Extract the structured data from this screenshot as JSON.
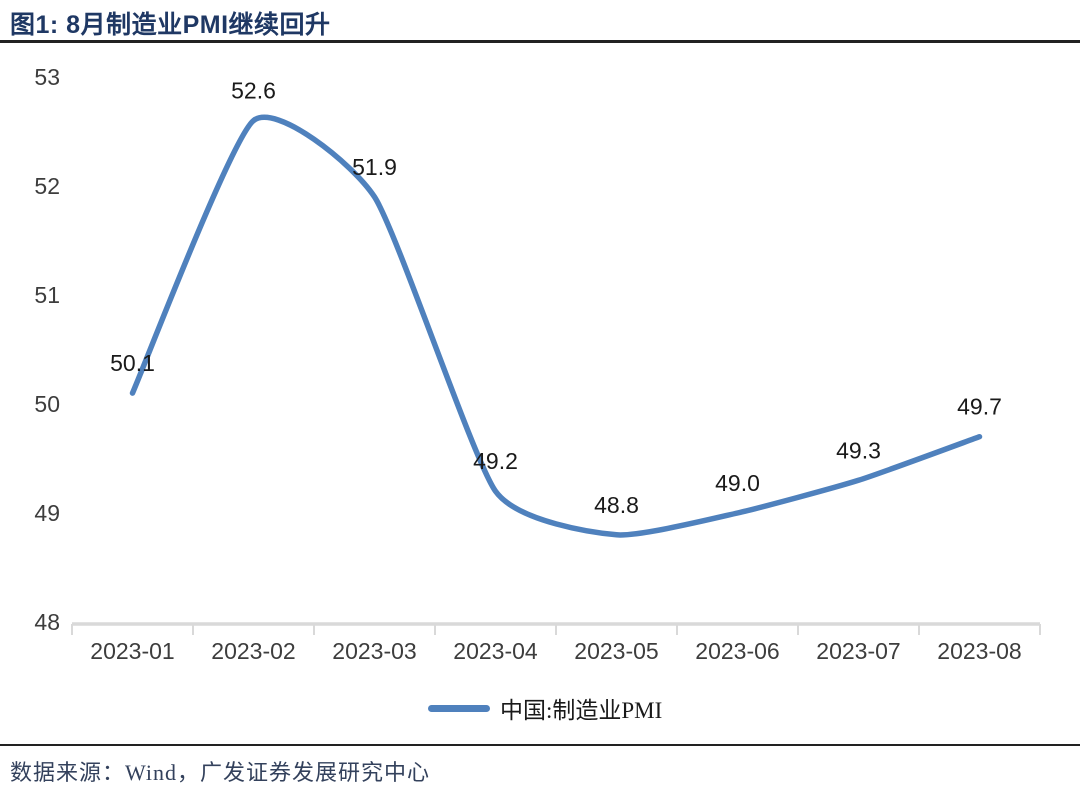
{
  "header": {
    "title": "图1:  8月制造业PMI继续回升"
  },
  "legend": {
    "label": "中国:制造业PMI"
  },
  "footer": {
    "source": "数据来源：Wind，广发证券发展研究中心"
  },
  "colors": {
    "line": "#4f81bd",
    "title": "#1f3864",
    "rule": "#222222",
    "axis": "#d9d9d9",
    "tick_text": "#3d3d3d",
    "data_label_text": "#1a1a1a",
    "source_text": "#33415c",
    "legend_text": "#1a1a1a"
  },
  "chart_data": {
    "type": "line",
    "title": "图1: 8月制造业PMI继续回升",
    "categories": [
      "2023-01",
      "2023-02",
      "2023-03",
      "2023-04",
      "2023-05",
      "2023-06",
      "2023-07",
      "2023-08"
    ],
    "series": [
      {
        "name": "中国:制造业PMI",
        "values": [
          50.1,
          52.6,
          51.9,
          49.2,
          48.8,
          49.0,
          49.3,
          49.7
        ]
      }
    ],
    "data_labels": [
      "50.1",
      "52.6",
      "51.9",
      "49.2",
      "48.8",
      "49.0",
      "49.3",
      "49.7"
    ],
    "xlabel": "",
    "ylabel": "",
    "ylim": [
      48,
      53
    ],
    "yticks": [
      48,
      49,
      50,
      51,
      52,
      53
    ],
    "grid": false,
    "legend_position": "bottom"
  }
}
